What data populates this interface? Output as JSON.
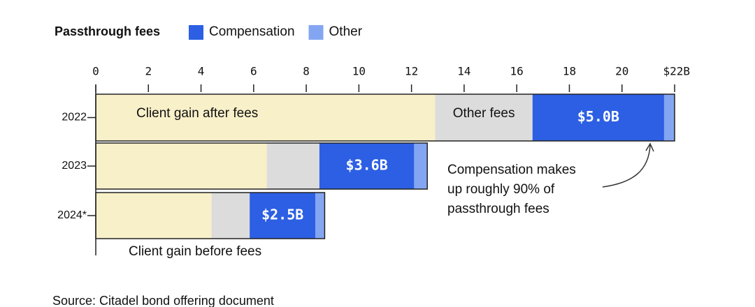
{
  "chart_data": {
    "type": "stacked-barh",
    "legend_title": "Passthrough fees",
    "categories": [
      "2022",
      "2023",
      "2024*"
    ],
    "series": [
      {
        "name": "Client gain after fees",
        "color": "#f8f0c9",
        "values": [
          12.9,
          6.5,
          4.4
        ]
      },
      {
        "name": "Other fees",
        "color": "#dcdcdc",
        "values": [
          3.7,
          2.0,
          1.45
        ]
      },
      {
        "name": "Compensation",
        "color": "#2c5fe3",
        "values": [
          5.0,
          3.6,
          2.5
        ],
        "value_labels": [
          "$5.0B",
          "$3.6B",
          "$2.5B"
        ]
      },
      {
        "name": "Other",
        "color": "#84a6f2",
        "values": [
          0.4,
          0.5,
          0.35
        ]
      }
    ],
    "legend_series": [
      2,
      3
    ],
    "xlim": [
      0,
      22
    ],
    "xticks": [
      0,
      2,
      4,
      6,
      8,
      10,
      12,
      14,
      16,
      18,
      20,
      {
        "value": 22,
        "label": "$22B"
      }
    ],
    "annotations": [
      "Compensation makes",
      "up roughly 90% of",
      "passthrough fees"
    ],
    "bracket_label": "Client gain before fees",
    "source": "Source: Citadel bond offering document"
  }
}
